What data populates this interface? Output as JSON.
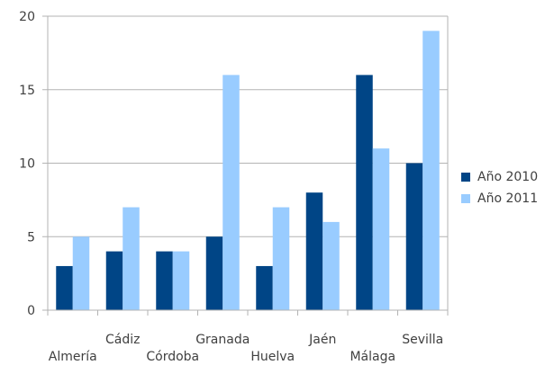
{
  "chart_data": {
    "type": "bar",
    "categories": [
      "Almería",
      "Cádiz",
      "Córdoba",
      "Granada",
      "Huelva",
      "Jaén",
      "Málaga",
      "Sevilla"
    ],
    "series": [
      {
        "name": "Año 2010",
        "color": "#004586",
        "values": [
          3,
          4,
          4,
          5,
          3,
          8,
          16,
          10
        ]
      },
      {
        "name": "Año 2011",
        "color": "#99ccff",
        "values": [
          5,
          7,
          4,
          16,
          7,
          6,
          11,
          19
        ]
      }
    ],
    "ylim": [
      0,
      20
    ],
    "yticks": [
      0,
      5,
      10,
      15,
      20
    ],
    "grid": true,
    "legend": "right"
  }
}
